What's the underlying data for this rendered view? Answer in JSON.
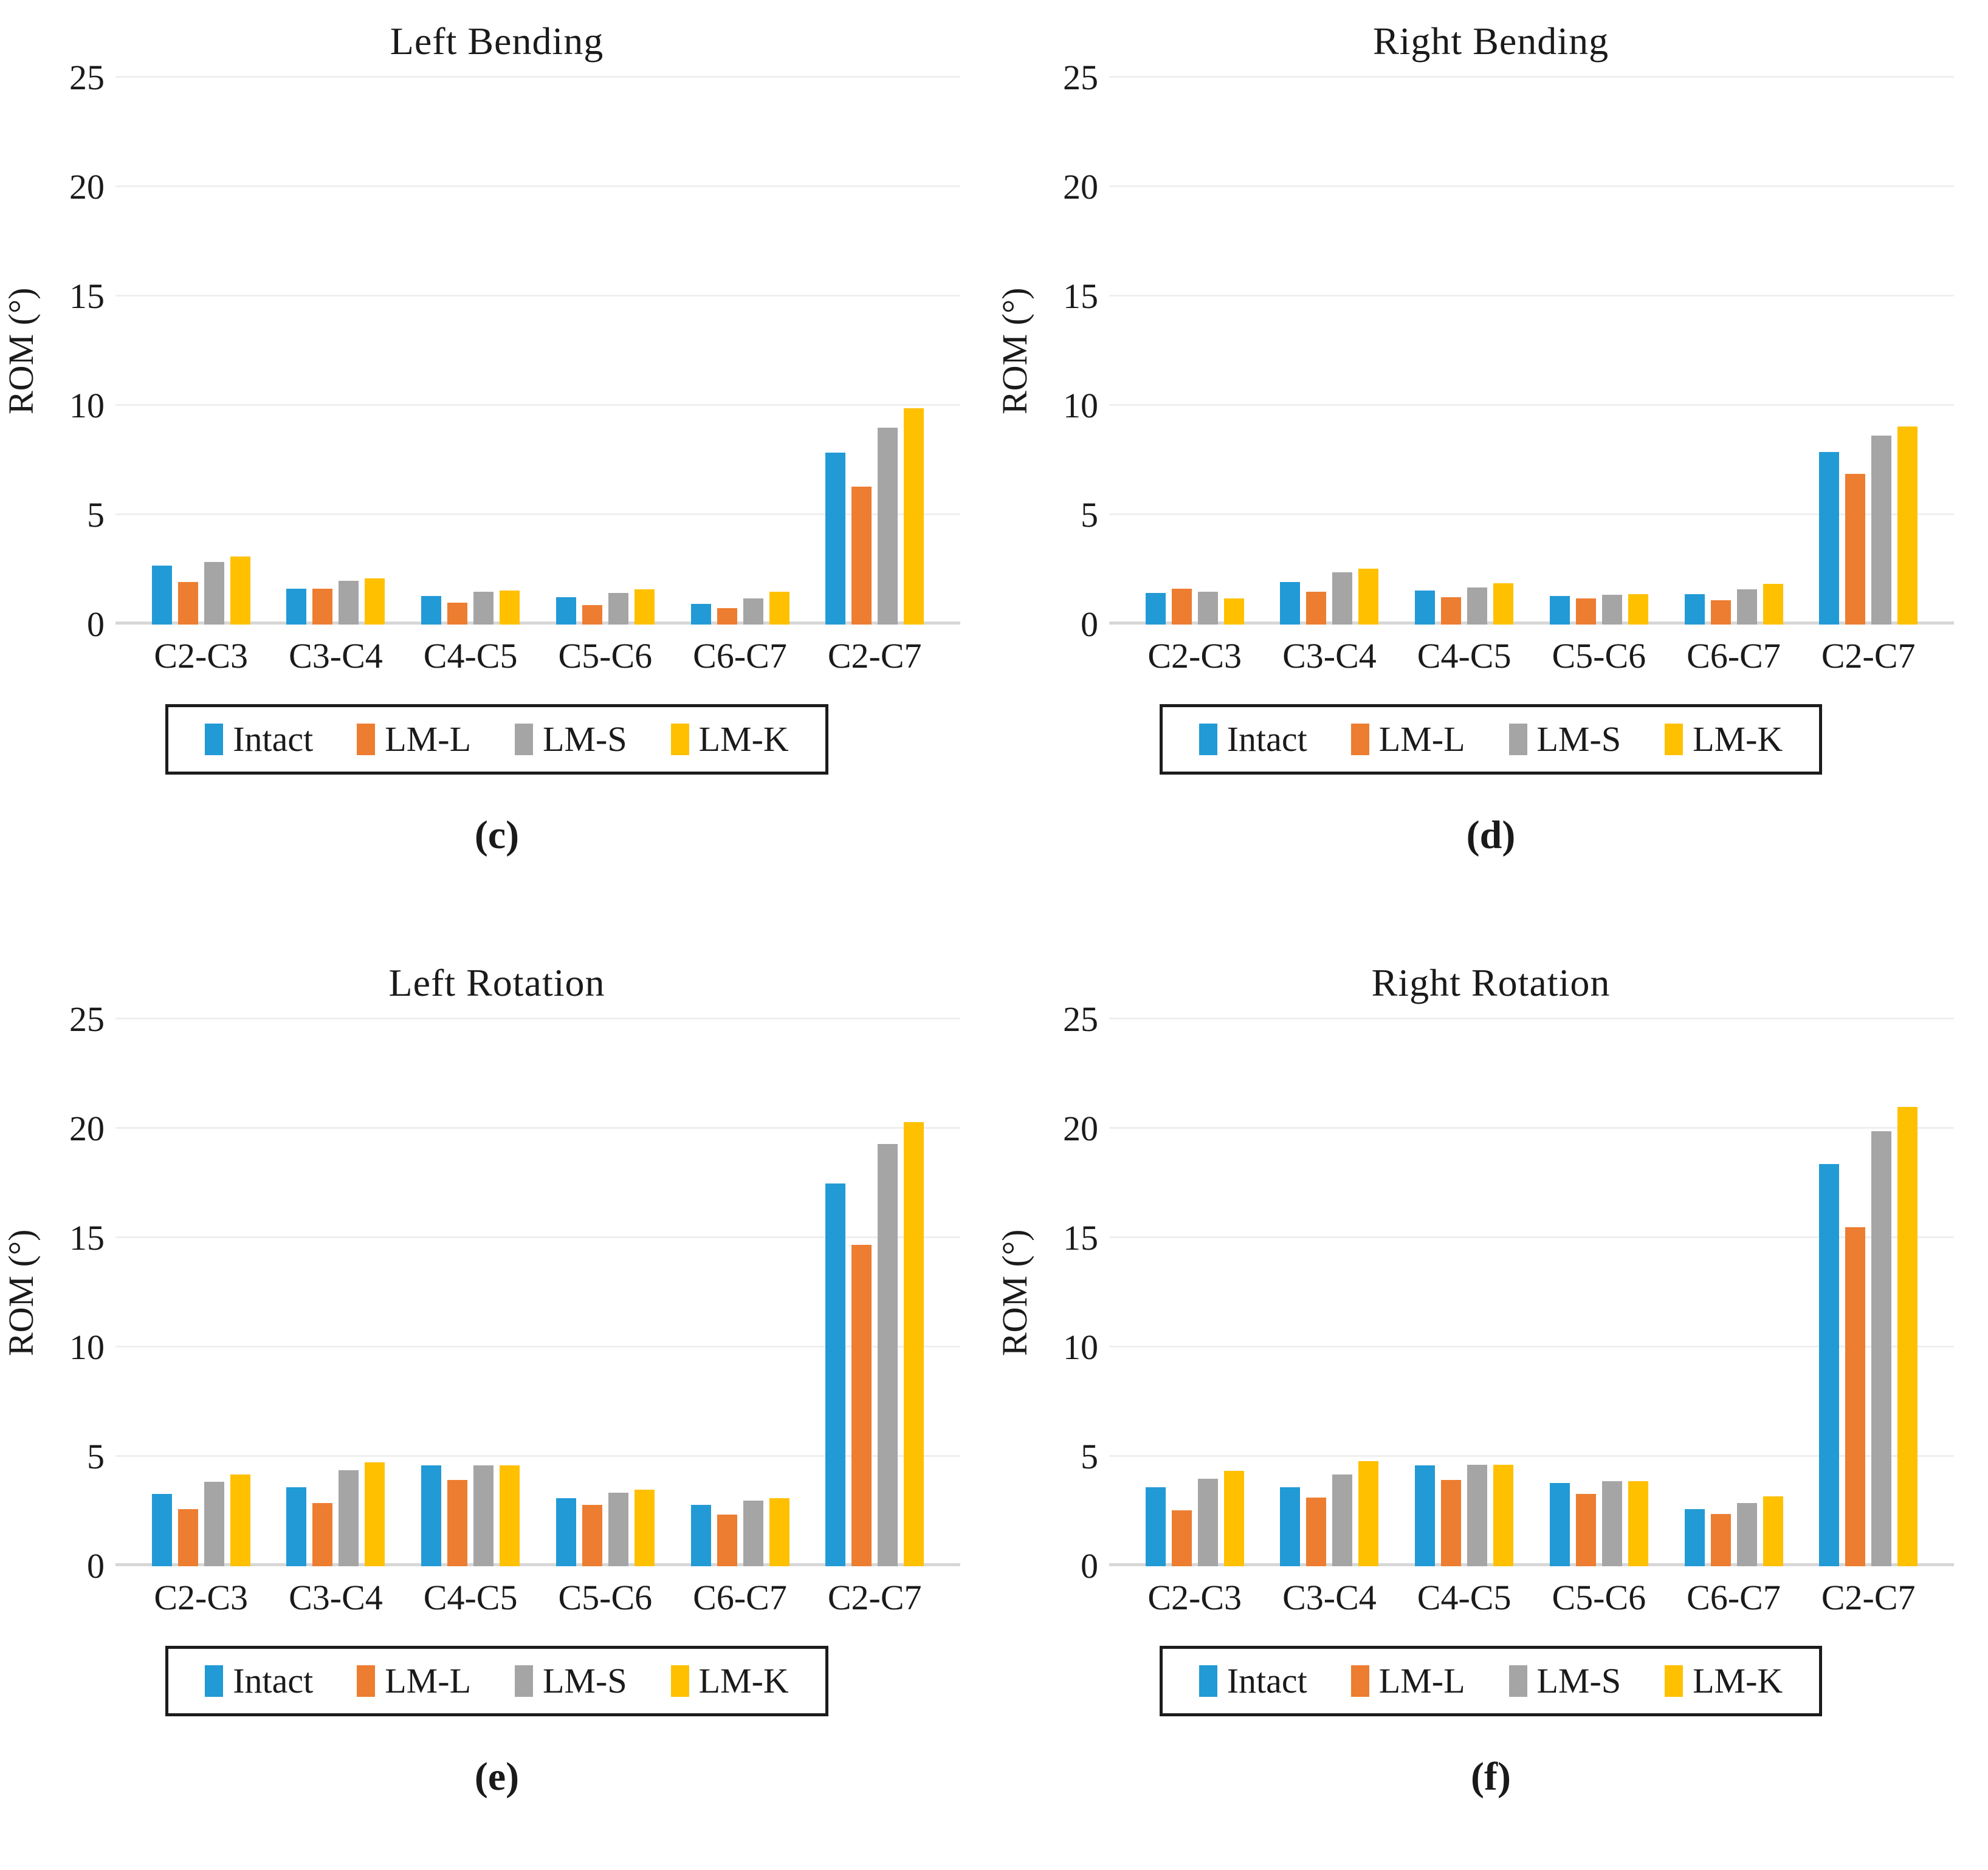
{
  "figure": {
    "y_axis_title": "ROM (°)",
    "legend_labels": [
      "Intact",
      "LM-L",
      "LM-S",
      "LM-K"
    ]
  },
  "colors": {
    "intact": "#229AD6",
    "lm_l": "#ED7D31",
    "lm_s": "#A5A5A5",
    "lm_k": "#FFC000",
    "gridline": "#EFEFEF",
    "axis_line": "#D7D7D7",
    "text": "#1A1A1A"
  },
  "chart_data": [
    {
      "type": "bar",
      "title": "Left Bending",
      "panel_letter": "(c)",
      "ylabel": "ROM (°)",
      "ylim": [
        0,
        25
      ],
      "yticks": [
        0,
        5,
        10,
        15,
        20,
        25
      ],
      "grid": true,
      "legend_position": "bottom",
      "categories": [
        "C2-C3",
        "C3-C4",
        "C4-C5",
        "C5-C6",
        "C6-C7",
        "C2-C7"
      ],
      "series": [
        {
          "name": "Intact",
          "color_key": "intact",
          "values": [
            2.7,
            1.65,
            1.3,
            1.25,
            0.95,
            7.85
          ]
        },
        {
          "name": "LM-L",
          "color_key": "lm_l",
          "values": [
            1.95,
            1.65,
            1.0,
            0.9,
            0.75,
            6.3
          ]
        },
        {
          "name": "LM-S",
          "color_key": "lm_s",
          "values": [
            2.85,
            2.0,
            1.5,
            1.45,
            1.2,
            9.0
          ]
        },
        {
          "name": "LM-K",
          "color_key": "lm_k",
          "values": [
            3.1,
            2.1,
            1.55,
            1.6,
            1.5,
            9.9
          ]
        }
      ]
    },
    {
      "type": "bar",
      "title": "Right Bending",
      "panel_letter": "(d)",
      "ylabel": "ROM (°)",
      "ylim": [
        0,
        25
      ],
      "yticks": [
        0,
        5,
        10,
        15,
        20,
        25
      ],
      "grid": true,
      "legend_position": "bottom",
      "categories": [
        "C2-C3",
        "C3-C4",
        "C4-C5",
        "C5-C6",
        "C6-C7",
        "C2-C7"
      ],
      "series": [
        {
          "name": "Intact",
          "color_key": "intact",
          "values": [
            1.45,
            1.95,
            1.55,
            1.3,
            1.4,
            7.9
          ]
        },
        {
          "name": "LM-L",
          "color_key": "lm_l",
          "values": [
            1.65,
            1.5,
            1.25,
            1.2,
            1.1,
            6.9
          ]
        },
        {
          "name": "LM-S",
          "color_key": "lm_s",
          "values": [
            1.5,
            2.4,
            1.7,
            1.35,
            1.6,
            8.65
          ]
        },
        {
          "name": "LM-K",
          "color_key": "lm_k",
          "values": [
            1.2,
            2.55,
            1.9,
            1.4,
            1.85,
            9.05
          ]
        }
      ]
    },
    {
      "type": "bar",
      "title": "Left Rotation",
      "panel_letter": "(e)",
      "ylabel": "ROM (°)",
      "ylim": [
        0,
        25
      ],
      "yticks": [
        0,
        5,
        10,
        15,
        20,
        25
      ],
      "grid": true,
      "legend_position": "bottom",
      "categories": [
        "C2-C3",
        "C3-C4",
        "C4-C5",
        "C5-C6",
        "C6-C7",
        "C2-C7"
      ],
      "series": [
        {
          "name": "Intact",
          "color_key": "intact",
          "values": [
            3.3,
            3.6,
            4.6,
            3.1,
            2.8,
            17.5
          ]
        },
        {
          "name": "LM-L",
          "color_key": "lm_l",
          "values": [
            2.6,
            2.9,
            3.95,
            2.8,
            2.35,
            14.7
          ]
        },
        {
          "name": "LM-S",
          "color_key": "lm_s",
          "values": [
            3.85,
            4.4,
            4.6,
            3.35,
            3.0,
            19.3
          ]
        },
        {
          "name": "LM-K",
          "color_key": "lm_k",
          "values": [
            4.2,
            4.75,
            4.6,
            3.5,
            3.1,
            20.3
          ]
        }
      ]
    },
    {
      "type": "bar",
      "title": "Right Rotation",
      "panel_letter": "(f)",
      "ylabel": "ROM (°)",
      "ylim": [
        0,
        25
      ],
      "yticks": [
        0,
        5,
        10,
        15,
        20,
        25
      ],
      "grid": true,
      "legend_position": "bottom",
      "categories": [
        "C2-C3",
        "C3-C4",
        "C4-C5",
        "C5-C6",
        "C6-C7",
        "C2-C7"
      ],
      "series": [
        {
          "name": "Intact",
          "color_key": "intact",
          "values": [
            3.6,
            3.6,
            4.6,
            3.8,
            2.6,
            18.4
          ]
        },
        {
          "name": "LM-L",
          "color_key": "lm_l",
          "values": [
            2.55,
            3.15,
            3.95,
            3.3,
            2.4,
            15.5
          ]
        },
        {
          "name": "LM-S",
          "color_key": "lm_s",
          "values": [
            4.0,
            4.2,
            4.65,
            3.9,
            2.9,
            19.9
          ]
        },
        {
          "name": "LM-K",
          "color_key": "lm_k",
          "values": [
            4.35,
            4.8,
            4.65,
            3.9,
            3.2,
            21.0
          ]
        }
      ]
    }
  ]
}
